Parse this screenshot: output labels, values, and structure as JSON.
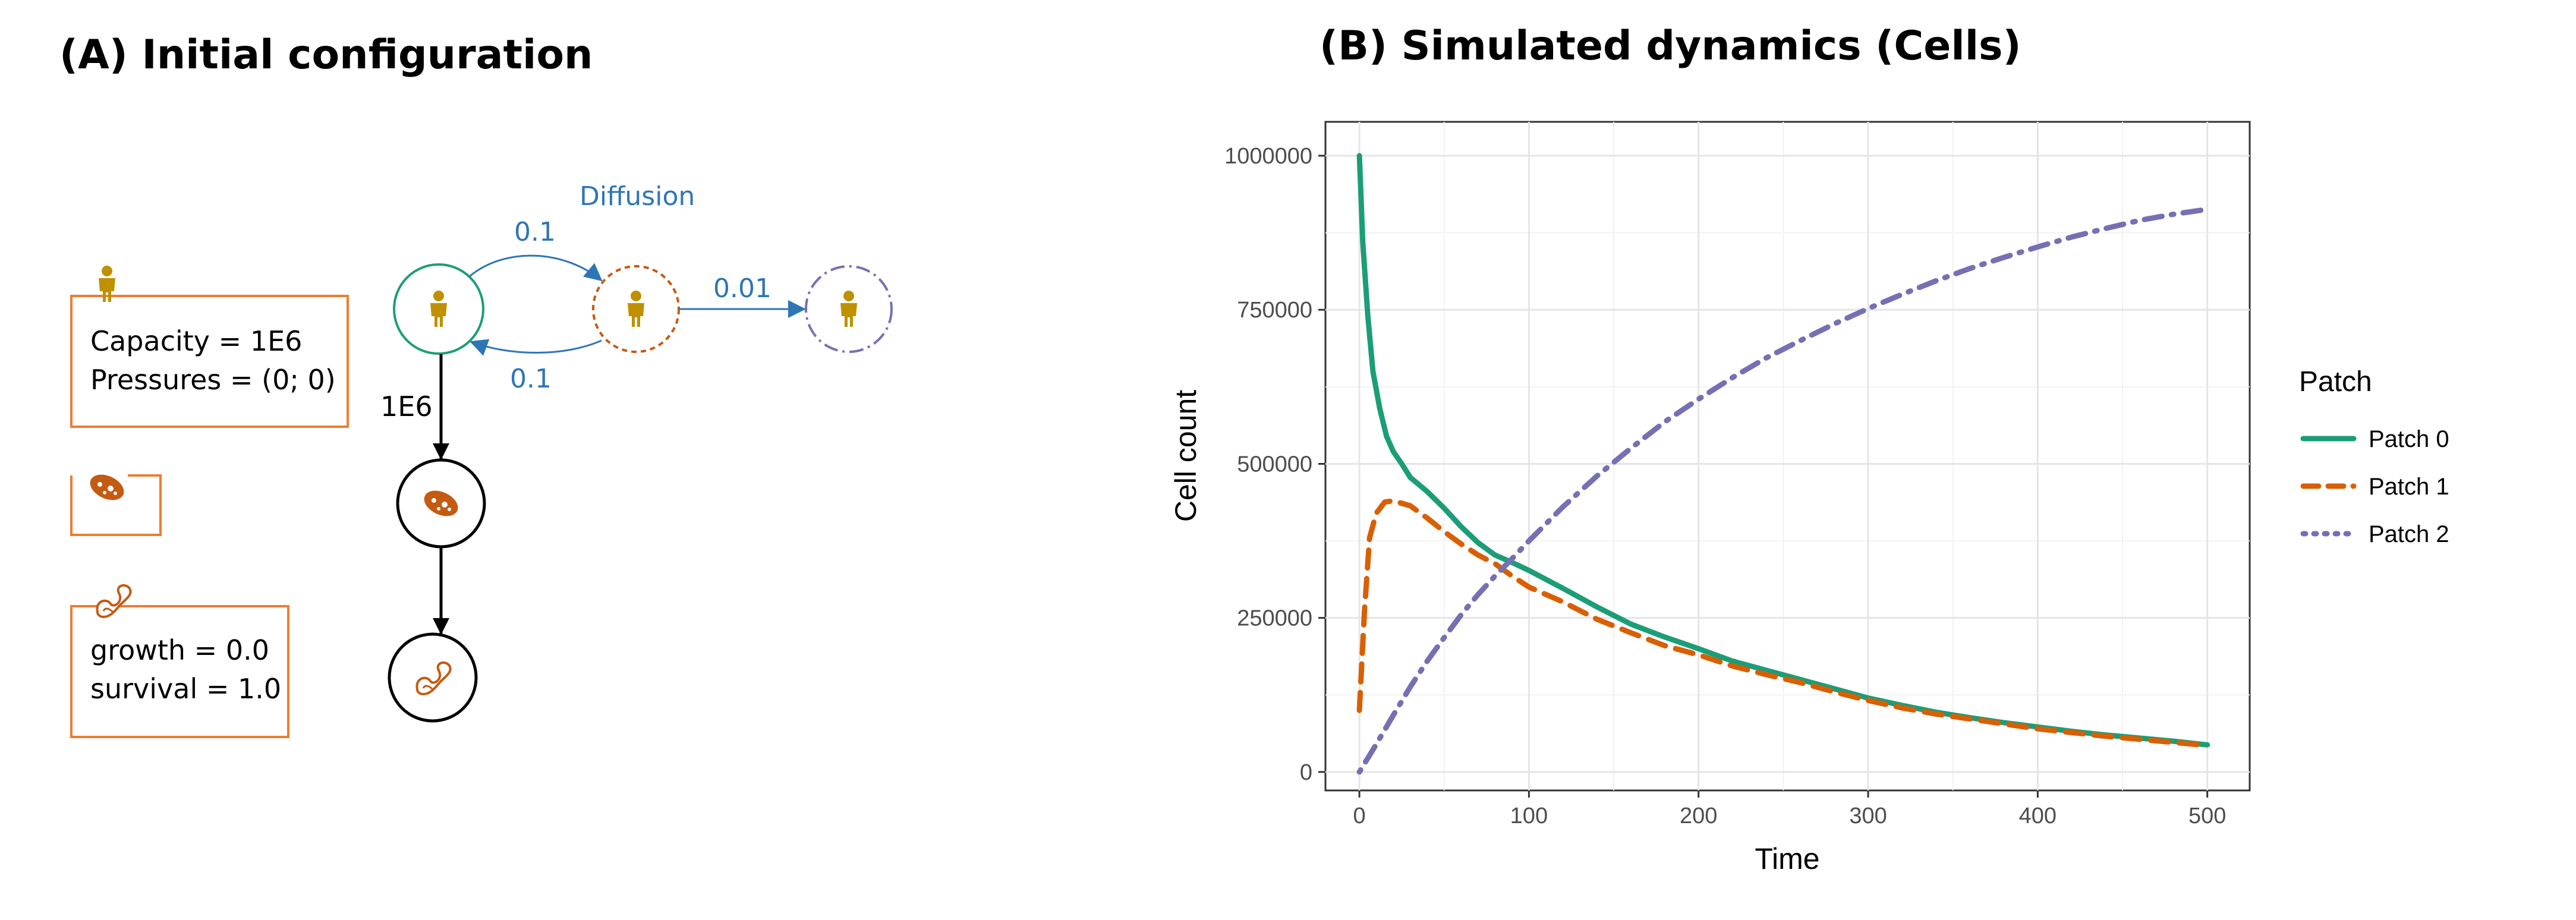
{
  "panel_a": {
    "title": "(A) Initial configuration",
    "box1": {
      "line1": "Capacity = 1E6",
      "line2": "Pressures = (0; 0)"
    },
    "box3": {
      "line1": "growth = 0.0",
      "line2": "survival = 1.0"
    },
    "diffusion_label": "Diffusion",
    "rate_top": "0.1",
    "rate_bottom": "0.1",
    "rate_right": "0.01",
    "edge_label": "1E6",
    "colors": {
      "orange": "#ED7D31",
      "teal": "#1A9E77",
      "gold": "#BF9000",
      "blue": "#2E75B6",
      "purple": "#7570B3",
      "dark_orange": "#C55A11"
    },
    "icons": [
      "person-icon",
      "bacterium-icon",
      "cell-fragment-icon"
    ]
  },
  "panel_b": {
    "title": "(B) Simulated dynamics (Cells)"
  },
  "chart_data": {
    "type": "line",
    "title": "(B) Simulated dynamics (Cells)",
    "xlabel": "Time",
    "ylabel": "Cell count",
    "xlim": [
      -20,
      525
    ],
    "ylim": [
      -30000,
      1055000
    ],
    "x_ticks": [
      0,
      100,
      200,
      300,
      400,
      500
    ],
    "x_tick_labels": [
      "0",
      "100",
      "200",
      "300",
      "400",
      "500"
    ],
    "y_ticks": [
      0,
      250000,
      500000,
      750000,
      1000000
    ],
    "y_tick_labels": [
      "0",
      "250000",
      "500000",
      "750000",
      "1000000"
    ],
    "grid": true,
    "legend_title": "Patch",
    "legend_position": "right",
    "series": [
      {
        "name": "Patch 0",
        "color": "#1B9E77",
        "style": "solid",
        "x": [
          0,
          2,
          5,
          8,
          12,
          16,
          20,
          25,
          30,
          40,
          50,
          60,
          70,
          80,
          90,
          100,
          120,
          140,
          160,
          180,
          200,
          220,
          240,
          260,
          280,
          300,
          320,
          340,
          360,
          380,
          400,
          420,
          440,
          460,
          480,
          500
        ],
        "y": [
          1000000,
          860000,
          740000,
          650000,
          590000,
          545000,
          520000,
          500000,
          478000,
          455000,
          428000,
          398000,
          372000,
          352000,
          340000,
          327000,
          298000,
          268000,
          240000,
          219000,
          200000,
          180000,
          165000,
          150000,
          135000,
          120000,
          108000,
          97000,
          88000,
          80000,
          73000,
          66000,
          60000,
          55000,
          50000,
          44000
        ]
      },
      {
        "name": "Patch 1",
        "color": "#D95F02",
        "style": "dashed",
        "x": [
          0,
          3,
          6,
          10,
          15,
          20,
          30,
          40,
          50,
          60,
          70,
          80,
          90,
          100,
          120,
          140,
          160,
          180,
          200,
          220,
          240,
          260,
          280,
          300,
          320,
          340,
          360,
          380,
          400,
          420,
          440,
          460,
          480,
          500
        ],
        "y": [
          100000,
          260000,
          380000,
          420000,
          438000,
          440000,
          432000,
          412000,
          390000,
          370000,
          352000,
          338000,
          318000,
          300000,
          276000,
          248000,
          226000,
          205000,
          190000,
          172000,
          158000,
          145000,
          130000,
          116000,
          104000,
          94000,
          86000,
          78000,
          70000,
          64000,
          58000,
          53000,
          48000,
          43000
        ]
      },
      {
        "name": "Patch 2",
        "color": "#7570B3",
        "style": "dotdash",
        "x": [
          0,
          10,
          20,
          30,
          40,
          50,
          60,
          70,
          80,
          90,
          100,
          120,
          140,
          160,
          180,
          200,
          220,
          240,
          260,
          280,
          300,
          320,
          340,
          360,
          380,
          400,
          420,
          440,
          460,
          480,
          500
        ],
        "y": [
          0,
          45000,
          92000,
          138000,
          180000,
          218000,
          255000,
          288000,
          318000,
          346000,
          375000,
          430000,
          480000,
          525000,
          568000,
          605000,
          640000,
          672000,
          700000,
          727000,
          752000,
          775000,
          797000,
          817000,
          835000,
          852000,
          868000,
          882000,
          895000,
          905000,
          913000
        ]
      }
    ]
  }
}
